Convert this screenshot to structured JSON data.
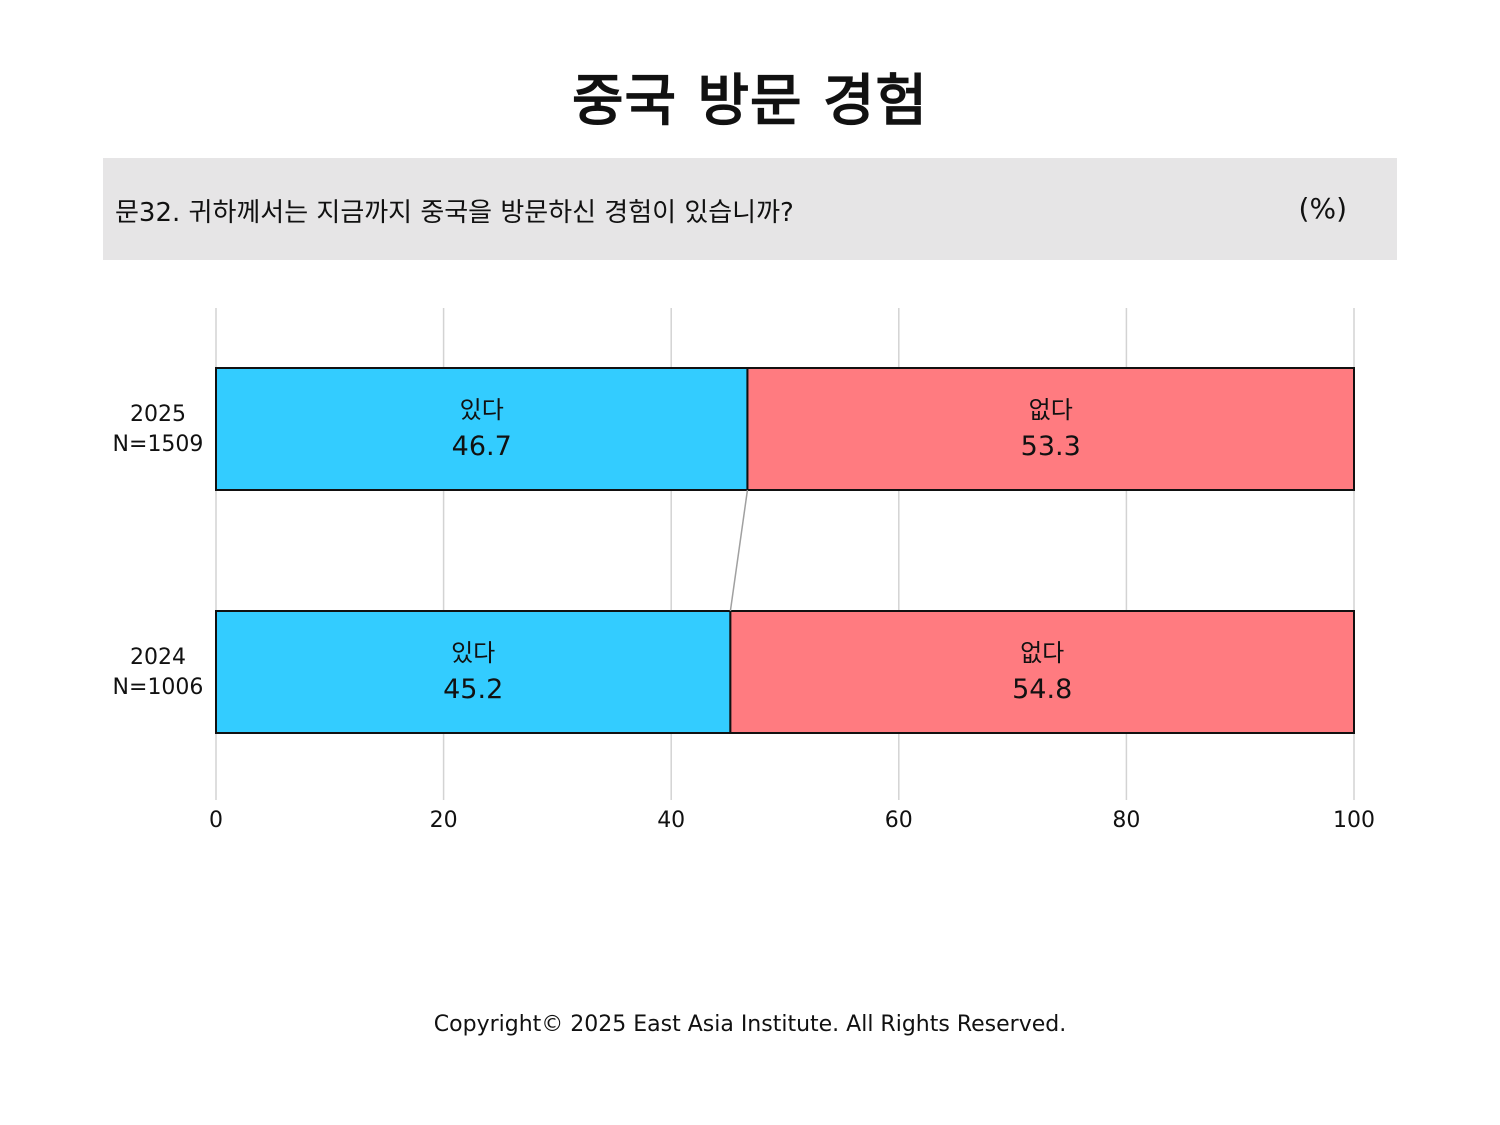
{
  "title": "중국 방문 경험",
  "question": {
    "text": "문32. 귀하께서는 지금까지 중국을 방문하신 경험이 있습니까?",
    "unit": "(%)"
  },
  "chart_data": {
    "type": "bar",
    "orientation": "horizontal",
    "stacked": true,
    "categories": [
      {
        "year": "2025",
        "n": "N=1509"
      },
      {
        "year": "2024",
        "n": "N=1006"
      }
    ],
    "series": [
      {
        "name": "있다",
        "color": "#33ccff",
        "values": [
          46.7,
          45.2
        ]
      },
      {
        "name": "없다",
        "color": "#ff7b80",
        "values": [
          53.3,
          54.8
        ]
      }
    ],
    "value_labels": [
      [
        "46.7",
        "53.3"
      ],
      [
        "45.2",
        "54.8"
      ]
    ],
    "xlim": [
      0,
      100
    ],
    "xticks": [
      "0",
      "20",
      "40",
      "60",
      "80",
      "100"
    ],
    "grid": true,
    "connector_lines": true
  },
  "footer": {
    "copyright": "Copyright© 2025 East Asia Institute. All Rights Reserved."
  }
}
